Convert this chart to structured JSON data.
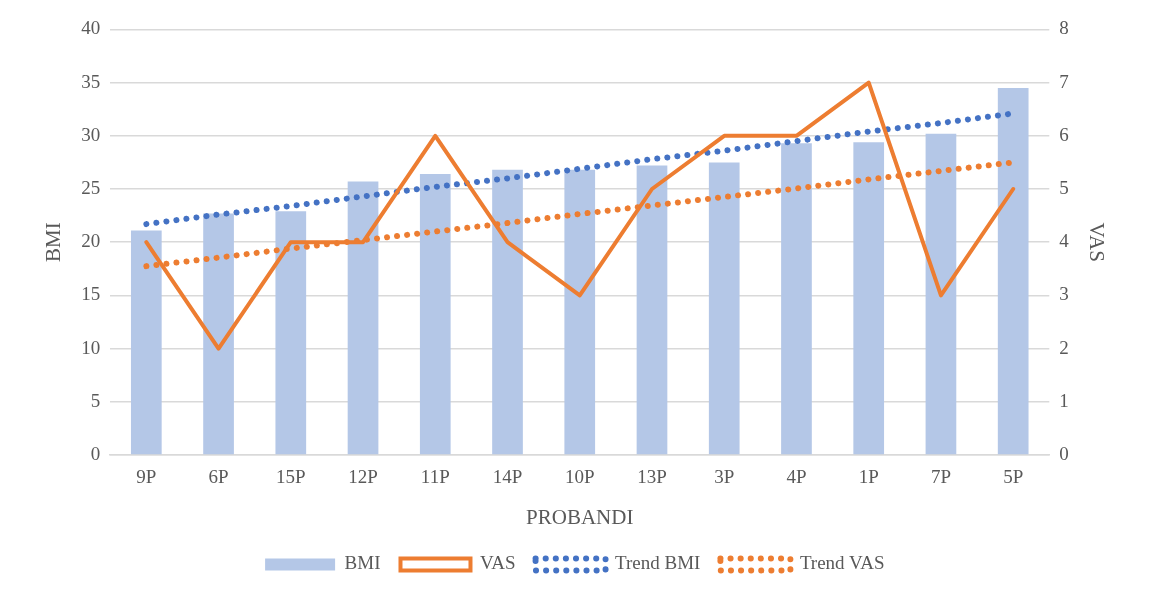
{
  "chart_data": {
    "type": "bar",
    "xlabel": "PROBANDI",
    "ylabel": "BMI",
    "y2label": "VAS",
    "categories": [
      "9P",
      "6P",
      "15P",
      "12P",
      "11P",
      "14P",
      "10P",
      "13P",
      "3P",
      "4P",
      "1P",
      "7P",
      "5P"
    ],
    "series": [
      {
        "name": "BMI",
        "color": "#b4c7e7",
        "values": [
          21.1,
          22.7,
          22.9,
          25.7,
          26.4,
          26.8,
          26.8,
          27.2,
          27.5,
          29.3,
          29.4,
          30.2,
          34.5
        ]
      },
      {
        "name": "VAS",
        "type": "line",
        "axis": "y2",
        "color": "#ed7d31",
        "line_style": "solid",
        "values": [
          4,
          2,
          4,
          4,
          6,
          4,
          3,
          5,
          6,
          6,
          7,
          3,
          5
        ]
      },
      {
        "name": "Trend BMI",
        "type": "line",
        "color": "#4472c4",
        "line_style": "dotted",
        "values": [
          21.7,
          22.6,
          23.4,
          24.3,
          25.2,
          26.0,
          26.9,
          27.8,
          28.6,
          29.5,
          30.4,
          31.2,
          32.1
        ]
      },
      {
        "name": "Trend VAS",
        "type": "line",
        "axis": "y2",
        "color": "#ed7d31",
        "line_style": "dotted",
        "values": [
          3.55,
          3.71,
          3.88,
          4.04,
          4.2,
          4.36,
          4.53,
          4.69,
          4.85,
          5.01,
          5.18,
          5.34,
          5.5
        ]
      }
    ],
    "ylim": [
      0,
      40
    ],
    "yticks": [
      0,
      5,
      10,
      15,
      20,
      25,
      30,
      35,
      40
    ],
    "y2lim": [
      0,
      8
    ],
    "y2ticks": [
      0,
      1,
      2,
      3,
      4,
      5,
      6,
      7,
      8
    ],
    "grid": "y",
    "legend": "bottom",
    "marker": "none"
  }
}
